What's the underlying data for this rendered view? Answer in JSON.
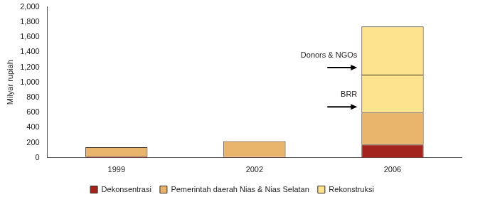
{
  "chart_data": {
    "type": "bar",
    "stacked": true,
    "y_label": "Milyar rupiah",
    "categories": [
      "1999",
      "2002",
      "2006"
    ],
    "series": [
      {
        "name": "Dekonsentrasi",
        "color": "#a3231f",
        "values": [
          15,
          10,
          175
        ]
      },
      {
        "name": "Pemerintah daerah Nias & Nias Selatan",
        "color": "#e9b46c",
        "values": [
          125,
          210,
          425
        ]
      },
      {
        "name": "Rekonstruksi",
        "color": "#fde38e",
        "values": [
          null,
          null,
          500
        ],
        "annotation": "BRR"
      },
      {
        "name": "Rekonstruksi",
        "color": "#fde38e",
        "values": [
          null,
          null,
          640
        ],
        "annotation": "Donors & NGOs"
      }
    ],
    "ylim": [
      0,
      2000
    ],
    "yticks": [
      0,
      200,
      400,
      600,
      800,
      {
        "value": 1000,
        "label": "1,000"
      },
      {
        "value": 1200,
        "label": "1,200"
      },
      {
        "value": 1400,
        "label": "1,400"
      },
      {
        "value": 1600,
        "label": "1,600"
      },
      {
        "value": 1800,
        "label": "1,800"
      },
      {
        "value": 2000,
        "label": "2,000"
      }
    ],
    "grid": false,
    "legend": "bottom"
  }
}
